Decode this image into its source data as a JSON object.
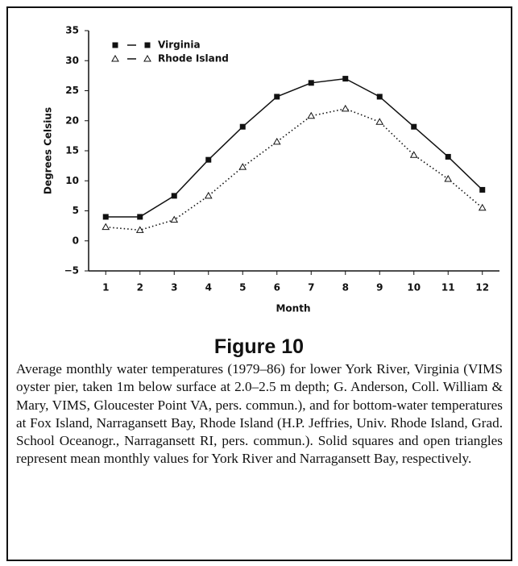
{
  "chart_data": {
    "type": "line",
    "x": [
      1,
      2,
      3,
      4,
      5,
      6,
      7,
      8,
      9,
      10,
      11,
      12
    ],
    "xlabel": "Month",
    "ylabel": "Degrees Celsius",
    "xlim": [
      0.5,
      12.5
    ],
    "xticks": [
      1,
      2,
      3,
      4,
      5,
      6,
      7,
      8,
      9,
      10,
      11,
      12
    ],
    "ylim": [
      -5,
      35
    ],
    "yticks": [
      {
        "value": -5,
        "label": "−5"
      },
      0,
      5,
      10,
      15,
      20,
      25,
      30,
      35
    ],
    "legend": "upper left",
    "series": [
      {
        "name": "Virginia",
        "color": "#111111",
        "marker": "square",
        "line": "solid",
        "values": [
          4,
          4,
          7.5,
          13.5,
          19,
          24,
          26.3,
          27,
          24,
          19,
          14,
          8.5
        ]
      },
      {
        "name": "Rhode Island",
        "color": "#111111",
        "marker": "triangle",
        "line": "dotted",
        "values": [
          2.3,
          1.8,
          3.5,
          7.5,
          12.3,
          16.5,
          20.8,
          22,
          19.8,
          14.3,
          10.3,
          5.5
        ]
      }
    ]
  },
  "figure": {
    "label": "Figure 10",
    "caption": "Average monthly water temperatures (1979–86) for lower York River, Virginia (VIMS oyster pier, taken 1m below surface at 2.0–2.5 m depth; G. Anderson, Coll. William & Mary, VIMS, Gloucester Point VA, pers. commun.), and for bottom-water temperatures at Fox Island, Narragansett Bay, Rhode Island (H.P. Jeffries, Univ. Rhode Island, Grad. School Oceanogr., Narragansett RI, pers. commun.). Solid squares and open triangles represent mean monthly values for York River and Narragansett Bay, respectively."
  }
}
